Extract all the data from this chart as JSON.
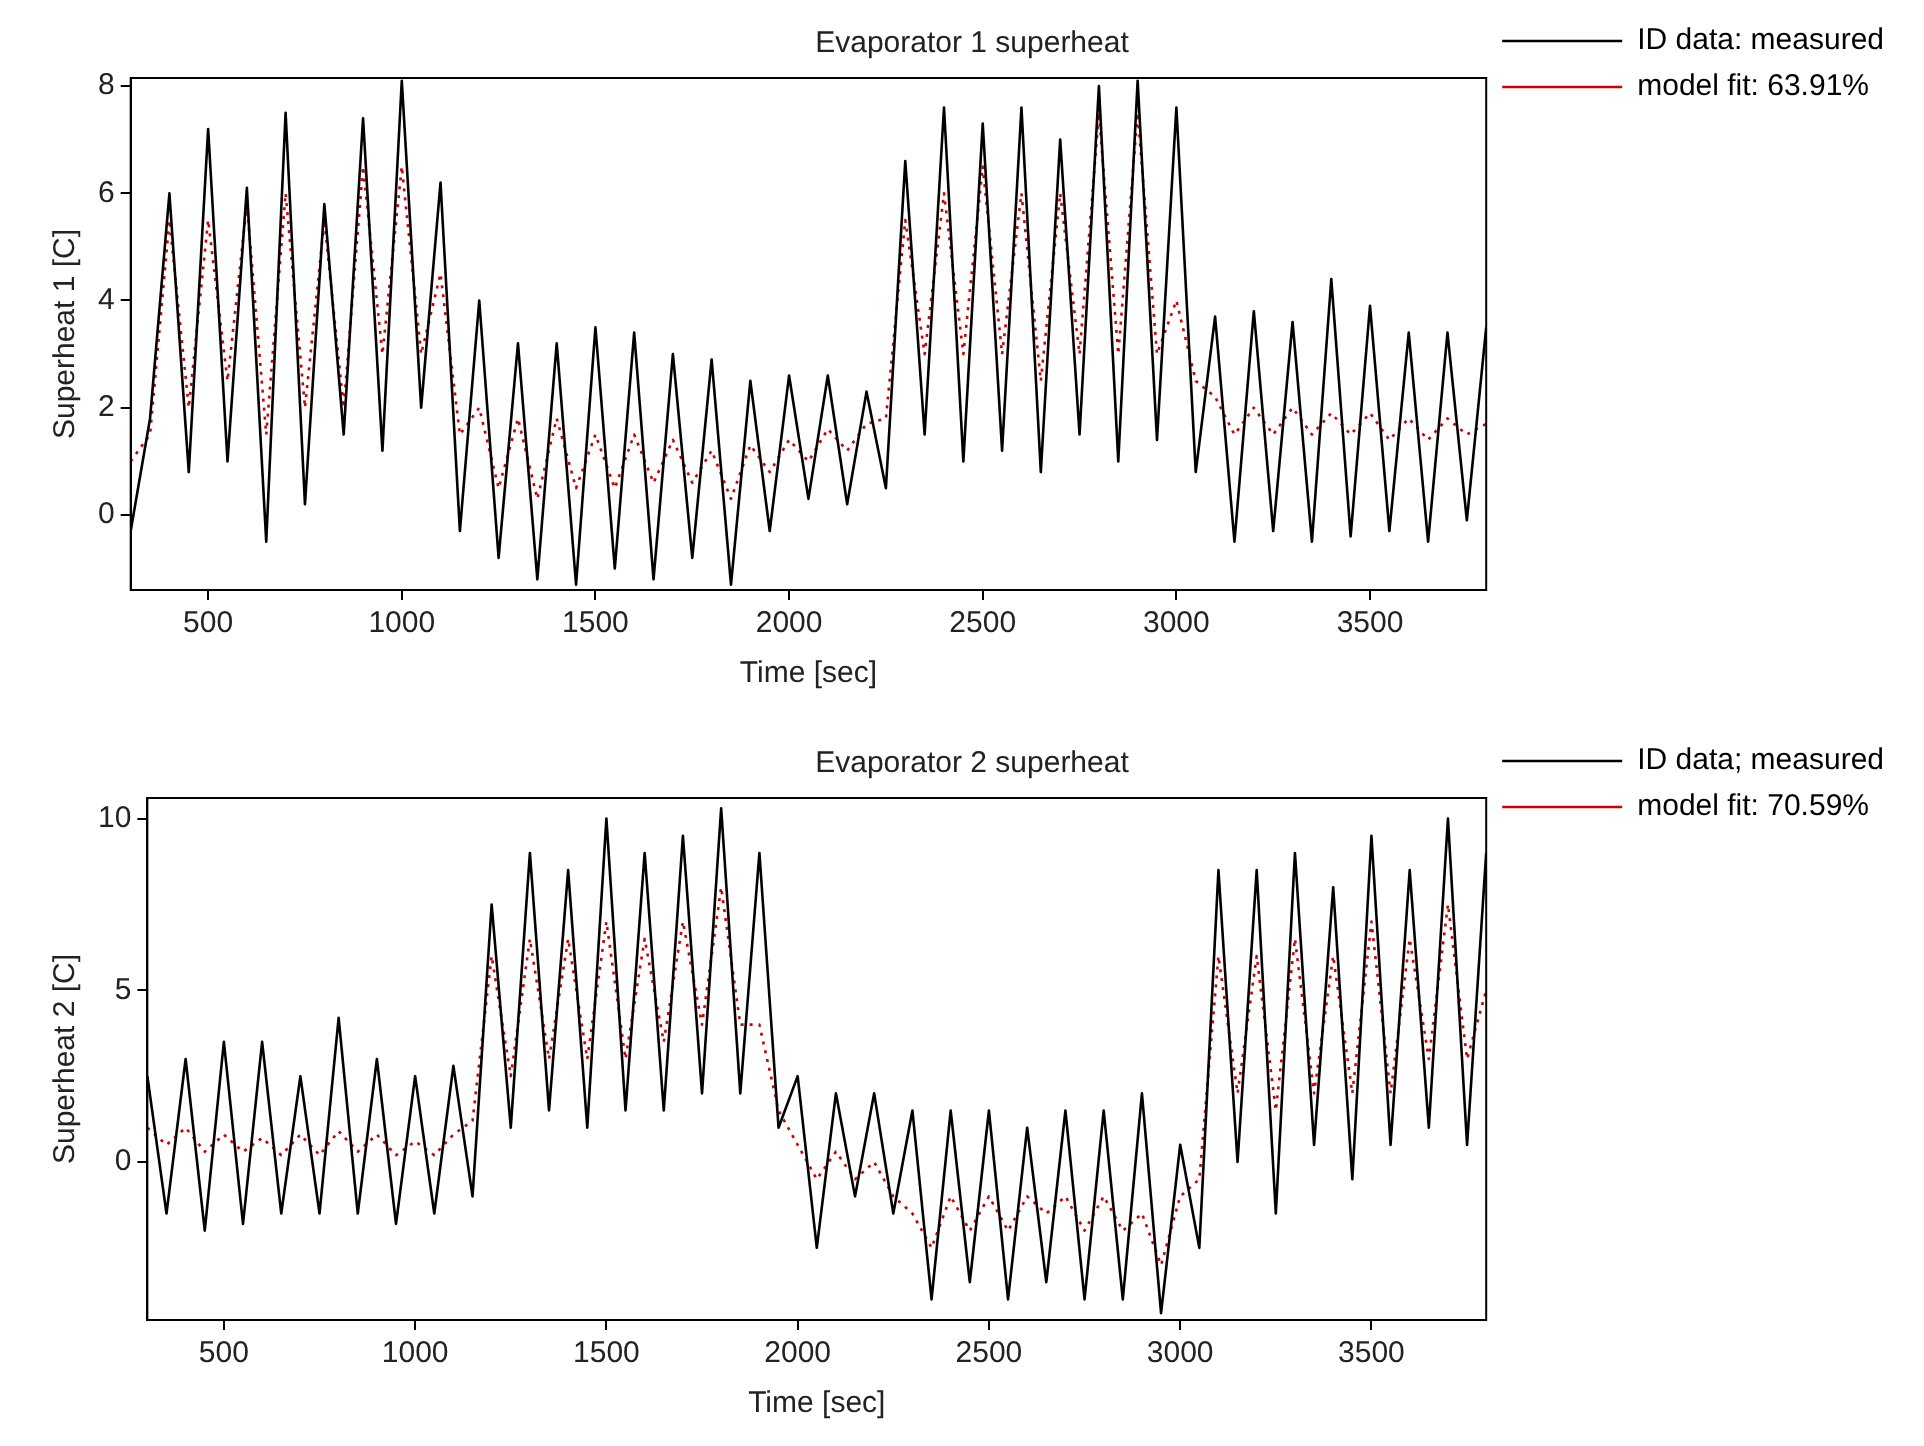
{
  "chart_data": [
    {
      "type": "line",
      "title": "Evaporator 1 superheat",
      "xlabel": "Time [sec]",
      "ylabel": "Superheat 1 [C]",
      "x": [
        300,
        350,
        400,
        450,
        500,
        550,
        600,
        650,
        700,
        750,
        800,
        850,
        900,
        950,
        1000,
        1050,
        1100,
        1150,
        1200,
        1250,
        1300,
        1350,
        1400,
        1450,
        1500,
        1550,
        1600,
        1650,
        1700,
        1750,
        1800,
        1850,
        1900,
        1950,
        2000,
        2050,
        2100,
        2150,
        2200,
        2250,
        2300,
        2350,
        2400,
        2450,
        2500,
        2550,
        2600,
        2650,
        2700,
        2750,
        2800,
        2850,
        2900,
        2950,
        3000,
        3050,
        3100,
        3150,
        3200,
        3250,
        3300,
        3350,
        3400,
        3450,
        3500,
        3550,
        3600,
        3650,
        3700,
        3750,
        3800
      ],
      "series": [
        {
          "name": "ID data: measured",
          "color": "#000000",
          "line_style": "solid",
          "values": [
            -0.3,
            1.8,
            6.0,
            0.8,
            7.2,
            1.0,
            6.1,
            -0.5,
            7.5,
            0.2,
            5.8,
            1.5,
            7.4,
            1.2,
            8.1,
            2.0,
            6.2,
            -0.3,
            4.0,
            -0.8,
            3.2,
            -1.2,
            3.2,
            -1.3,
            3.5,
            -1.0,
            3.4,
            -1.2,
            3.0,
            -0.8,
            2.9,
            -1.3,
            2.5,
            -0.3,
            2.6,
            0.3,
            2.6,
            0.2,
            2.3,
            0.5,
            6.6,
            1.5,
            7.6,
            1.0,
            7.3,
            1.2,
            7.6,
            0.8,
            7.0,
            1.5,
            8.0,
            1.0,
            8.1,
            1.4,
            7.6,
            0.8,
            3.7,
            -0.5,
            3.8,
            -0.3,
            3.6,
            -0.5,
            4.4,
            -0.4,
            3.9,
            -0.3,
            3.4,
            -0.5,
            3.4,
            -0.1,
            3.5
          ]
        },
        {
          "name": "model fit: 63.91%",
          "color": "#cc0000",
          "line_style": "dotted",
          "values": [
            1.0,
            1.5,
            5.5,
            2.0,
            5.5,
            2.5,
            5.8,
            1.5,
            6.0,
            2.0,
            5.5,
            2.0,
            6.5,
            3.0,
            6.5,
            3.0,
            4.5,
            1.5,
            2.0,
            0.5,
            1.8,
            0.3,
            1.8,
            0.5,
            1.5,
            0.5,
            1.5,
            0.6,
            1.4,
            0.6,
            1.2,
            0.3,
            1.3,
            0.8,
            1.4,
            1.0,
            1.6,
            1.2,
            1.7,
            1.8,
            5.5,
            3.0,
            6.0,
            3.0,
            6.5,
            3.0,
            6.0,
            2.5,
            6.0,
            3.0,
            7.5,
            3.0,
            7.5,
            3.0,
            4.0,
            2.5,
            2.2,
            1.5,
            2.0,
            1.5,
            2.0,
            1.5,
            1.9,
            1.5,
            1.9,
            1.4,
            1.8,
            1.4,
            1.8,
            1.5,
            1.7
          ]
        }
      ],
      "xlim": [
        300,
        3800
      ],
      "xticks": [
        500,
        1000,
        1500,
        2000,
        2500,
        3000,
        3500
      ],
      "ylim": [
        -1.4,
        8.15
      ],
      "yticks": [
        0,
        2,
        4,
        6,
        8
      ],
      "legend": "top right",
      "marker": "none",
      "grid": false
    },
    {
      "type": "line",
      "title": "Evaporator 2 superheat",
      "xlabel": "Time [sec]",
      "ylabel": "Superheat 2 [C]",
      "x": [
        300,
        350,
        400,
        450,
        500,
        550,
        600,
        650,
        700,
        750,
        800,
        850,
        900,
        950,
        1000,
        1050,
        1100,
        1150,
        1200,
        1250,
        1300,
        1350,
        1400,
        1450,
        1500,
        1550,
        1600,
        1650,
        1700,
        1750,
        1800,
        1850,
        1900,
        1950,
        2000,
        2050,
        2100,
        2150,
        2200,
        2250,
        2300,
        2350,
        2400,
        2450,
        2500,
        2550,
        2600,
        2650,
        2700,
        2750,
        2800,
        2850,
        2900,
        2950,
        3000,
        3050,
        3100,
        3150,
        3200,
        3250,
        3300,
        3350,
        3400,
        3450,
        3500,
        3550,
        3600,
        3650,
        3700,
        3750,
        3800
      ],
      "series": [
        {
          "name": "ID data; measured",
          "color": "#000000",
          "line_style": "solid",
          "values": [
            2.5,
            -1.5,
            3.0,
            -2.0,
            3.5,
            -1.8,
            3.5,
            -1.5,
            2.5,
            -1.5,
            4.2,
            -1.5,
            3.0,
            -1.8,
            2.5,
            -1.5,
            2.8,
            -1.0,
            7.5,
            1.0,
            9.0,
            1.5,
            8.5,
            1.0,
            10.0,
            1.5,
            9.0,
            1.5,
            9.5,
            2.0,
            10.3,
            2.0,
            9.0,
            1.0,
            2.5,
            -2.5,
            2.0,
            -1.0,
            2.0,
            -1.5,
            1.5,
            -4.0,
            1.5,
            -3.5,
            1.5,
            -4.0,
            1.0,
            -3.5,
            1.5,
            -4.0,
            1.5,
            -4.0,
            2.0,
            -4.4,
            0.5,
            -2.5,
            8.5,
            0.0,
            8.5,
            -1.5,
            9.0,
            0.5,
            8.0,
            -0.5,
            9.5,
            0.5,
            8.5,
            1.0,
            10.0,
            0.5,
            9.0
          ]
        },
        {
          "name": "model fit: 70.59%",
          "color": "#cc0000",
          "line_style": "dotted",
          "values": [
            1.0,
            0.5,
            1.0,
            0.3,
            0.8,
            0.3,
            0.7,
            0.2,
            0.8,
            0.2,
            0.9,
            0.3,
            0.8,
            0.2,
            0.6,
            0.2,
            0.8,
            1.2,
            6.0,
            2.5,
            6.5,
            3.0,
            6.5,
            3.0,
            7.0,
            3.0,
            6.5,
            3.5,
            7.0,
            4.0,
            8.0,
            4.0,
            4.0,
            1.5,
            0.5,
            -0.5,
            0.3,
            -0.5,
            0.0,
            -1.0,
            -1.5,
            -2.5,
            -1.0,
            -2.0,
            -1.0,
            -2.0,
            -1.0,
            -1.5,
            -1.0,
            -2.0,
            -1.0,
            -2.0,
            -1.5,
            -3.0,
            -1.0,
            -0.5,
            6.0,
            2.0,
            6.0,
            1.5,
            6.5,
            2.0,
            6.0,
            2.0,
            7.0,
            2.0,
            6.5,
            3.0,
            7.5,
            3.0,
            5.0
          ]
        }
      ],
      "xlim": [
        300,
        3800
      ],
      "xticks": [
        500,
        1000,
        1500,
        2000,
        2500,
        3000,
        3500
      ],
      "ylim": [
        -4.6,
        10.6
      ],
      "yticks": [
        0,
        5,
        10
      ],
      "legend": "top right",
      "marker": "none",
      "grid": false
    }
  ]
}
